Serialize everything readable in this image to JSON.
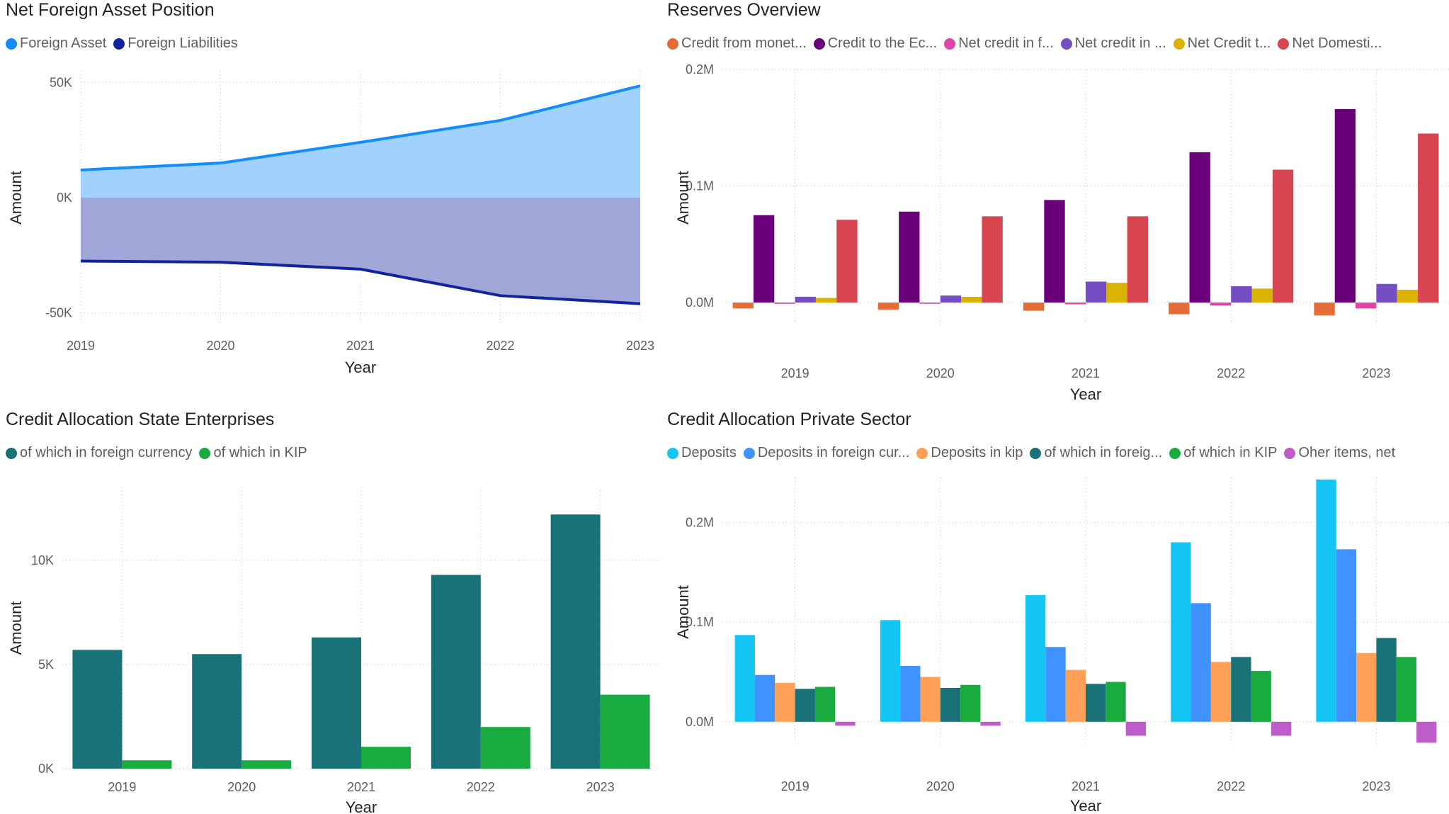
{
  "charts": [
    {
      "id": "p1",
      "title": "Net Foreign Asset Position",
      "legend": [
        {
          "label": "Foreign Asset",
          "color": "#118DFF"
        },
        {
          "label": "Foreign Liabilities",
          "color": "#12239E"
        }
      ]
    },
    {
      "id": "p2",
      "title": "Reserves Overview",
      "legend": [
        {
          "label": "Credit from monet...",
          "color": "#E66C37"
        },
        {
          "label": "Credit to the Ec...",
          "color": "#6B007B"
        },
        {
          "label": "Net credit in f...",
          "color": "#E044A7"
        },
        {
          "label": "Net credit in ...",
          "color": "#744EC2"
        },
        {
          "label": "Net Credit t...",
          "color": "#D9B300"
        },
        {
          "label": "Net Domesti...",
          "color": "#D64550"
        }
      ]
    },
    {
      "id": "p3",
      "title": "Credit Allocation State Enterprises",
      "legend": [
        {
          "label": "of which in foreign currency",
          "color": "#197278"
        },
        {
          "label": "of which in KIP",
          "color": "#1AAB40"
        }
      ]
    },
    {
      "id": "p4",
      "title": "Credit Allocation Private Sector",
      "legend": [
        {
          "label": "Deposits",
          "color": "#15C6F4"
        },
        {
          "label": "Deposits in foreign cur...",
          "color": "#4092FF"
        },
        {
          "label": "Deposits in kip",
          "color": "#FFA058"
        },
        {
          "label": "of which in foreig...",
          "color": "#197278"
        },
        {
          "label": "of which in KIP",
          "color": "#1AAB40"
        },
        {
          "label": "Oher items, net",
          "color": "#BE5DC9"
        }
      ]
    }
  ],
  "chart_data": [
    {
      "type": "area",
      "title": "Net Foreign Asset Position",
      "xlabel": "Year",
      "ylabel": "Amount",
      "categories": [
        "2019",
        "2020",
        "2021",
        "2022",
        "2023"
      ],
      "ylim": [
        -55000,
        55000
      ],
      "yticks": [
        -50000,
        0,
        50000
      ],
      "ytick_labels": [
        "-50K",
        "0K",
        "50K"
      ],
      "grid": true,
      "legend_position": "top-left",
      "series": [
        {
          "name": "Foreign Asset",
          "color": "#118DFF",
          "fill": "#A0D1FF",
          "values": [
            12000,
            15000,
            24000,
            33500,
            48500
          ]
        },
        {
          "name": "Foreign Liabilities",
          "color": "#12239E",
          "fill": "#A0A7D8",
          "values": [
            -27500,
            -28000,
            -31000,
            -42500,
            -46000
          ]
        }
      ]
    },
    {
      "type": "bar",
      "title": "Reserves Overview",
      "xlabel": "Year",
      "ylabel": "Amount",
      "categories": [
        "2019",
        "2020",
        "2021",
        "2022",
        "2023"
      ],
      "ylim": [
        -20000,
        200000
      ],
      "yticks": [
        0,
        100000,
        200000
      ],
      "ytick_labels": [
        "0.0M",
        "0.1M",
        "0.2M"
      ],
      "grid": true,
      "legend_position": "top-left",
      "series": [
        {
          "name": "Credit from monet...",
          "color": "#E66C37",
          "values": [
            -5000,
            -6000,
            -7000,
            -10000,
            -11000
          ]
        },
        {
          "name": "Credit to the Ec...",
          "color": "#6B007B",
          "values": [
            75000,
            78000,
            88000,
            129000,
            166000
          ]
        },
        {
          "name": "Net credit in f...",
          "color": "#E044A7",
          "values": [
            -1000,
            -1000,
            -1500,
            -2500,
            -5000
          ]
        },
        {
          "name": "Net credit in ...",
          "color": "#744EC2",
          "values": [
            5000,
            6000,
            18000,
            14000,
            16000
          ]
        },
        {
          "name": "Net Credit t...",
          "color": "#D9B300",
          "values": [
            4000,
            5000,
            17000,
            12000,
            11000
          ]
        },
        {
          "name": "Net Domesti...",
          "color": "#D64550",
          "values": [
            71000,
            74000,
            74000,
            114000,
            145000
          ]
        }
      ]
    },
    {
      "type": "bar",
      "title": "Credit Allocation State Enterprises",
      "xlabel": "Year",
      "ylabel": "Amount",
      "categories": [
        "2019",
        "2020",
        "2021",
        "2022",
        "2023"
      ],
      "ylim": [
        0,
        13500
      ],
      "yticks": [
        0,
        5000,
        10000
      ],
      "ytick_labels": [
        "0K",
        "5K",
        "10K"
      ],
      "grid": true,
      "legend_position": "top-left",
      "series": [
        {
          "name": "of which in foreign currency",
          "color": "#197278",
          "values": [
            5700,
            5500,
            6300,
            9300,
            12200
          ]
        },
        {
          "name": "of which in KIP",
          "color": "#1AAB40",
          "values": [
            400,
            400,
            1050,
            2000,
            3550
          ]
        }
      ]
    },
    {
      "type": "bar",
      "title": "Credit Allocation Private Sector",
      "xlabel": "Year",
      "ylabel": "Amount",
      "categories": [
        "2019",
        "2020",
        "2021",
        "2022",
        "2023"
      ],
      "ylim": [
        -25000,
        245000
      ],
      "yticks": [
        0,
        100000,
        200000
      ],
      "ytick_labels": [
        "0.0M",
        "0.1M",
        "0.2M"
      ],
      "grid": true,
      "legend_position": "top-left",
      "series": [
        {
          "name": "Deposits",
          "color": "#15C6F4",
          "values": [
            87000,
            102000,
            127000,
            180000,
            243000
          ]
        },
        {
          "name": "Deposits in foreign cur...",
          "color": "#4092FF",
          "values": [
            47000,
            56000,
            75000,
            119000,
            173000
          ]
        },
        {
          "name": "Deposits in kip",
          "color": "#FFA058",
          "values": [
            39000,
            45000,
            52000,
            60000,
            69000
          ]
        },
        {
          "name": "of which in foreig...",
          "color": "#197278",
          "values": [
            33000,
            34000,
            38000,
            65000,
            84000
          ]
        },
        {
          "name": "of which in KIP",
          "color": "#1AAB40",
          "values": [
            35000,
            37000,
            40000,
            51000,
            65000
          ]
        },
        {
          "name": "Oher items, net",
          "color": "#BE5DC9",
          "values": [
            -4000,
            -4000,
            -14000,
            -14000,
            -21000
          ]
        }
      ]
    }
  ]
}
